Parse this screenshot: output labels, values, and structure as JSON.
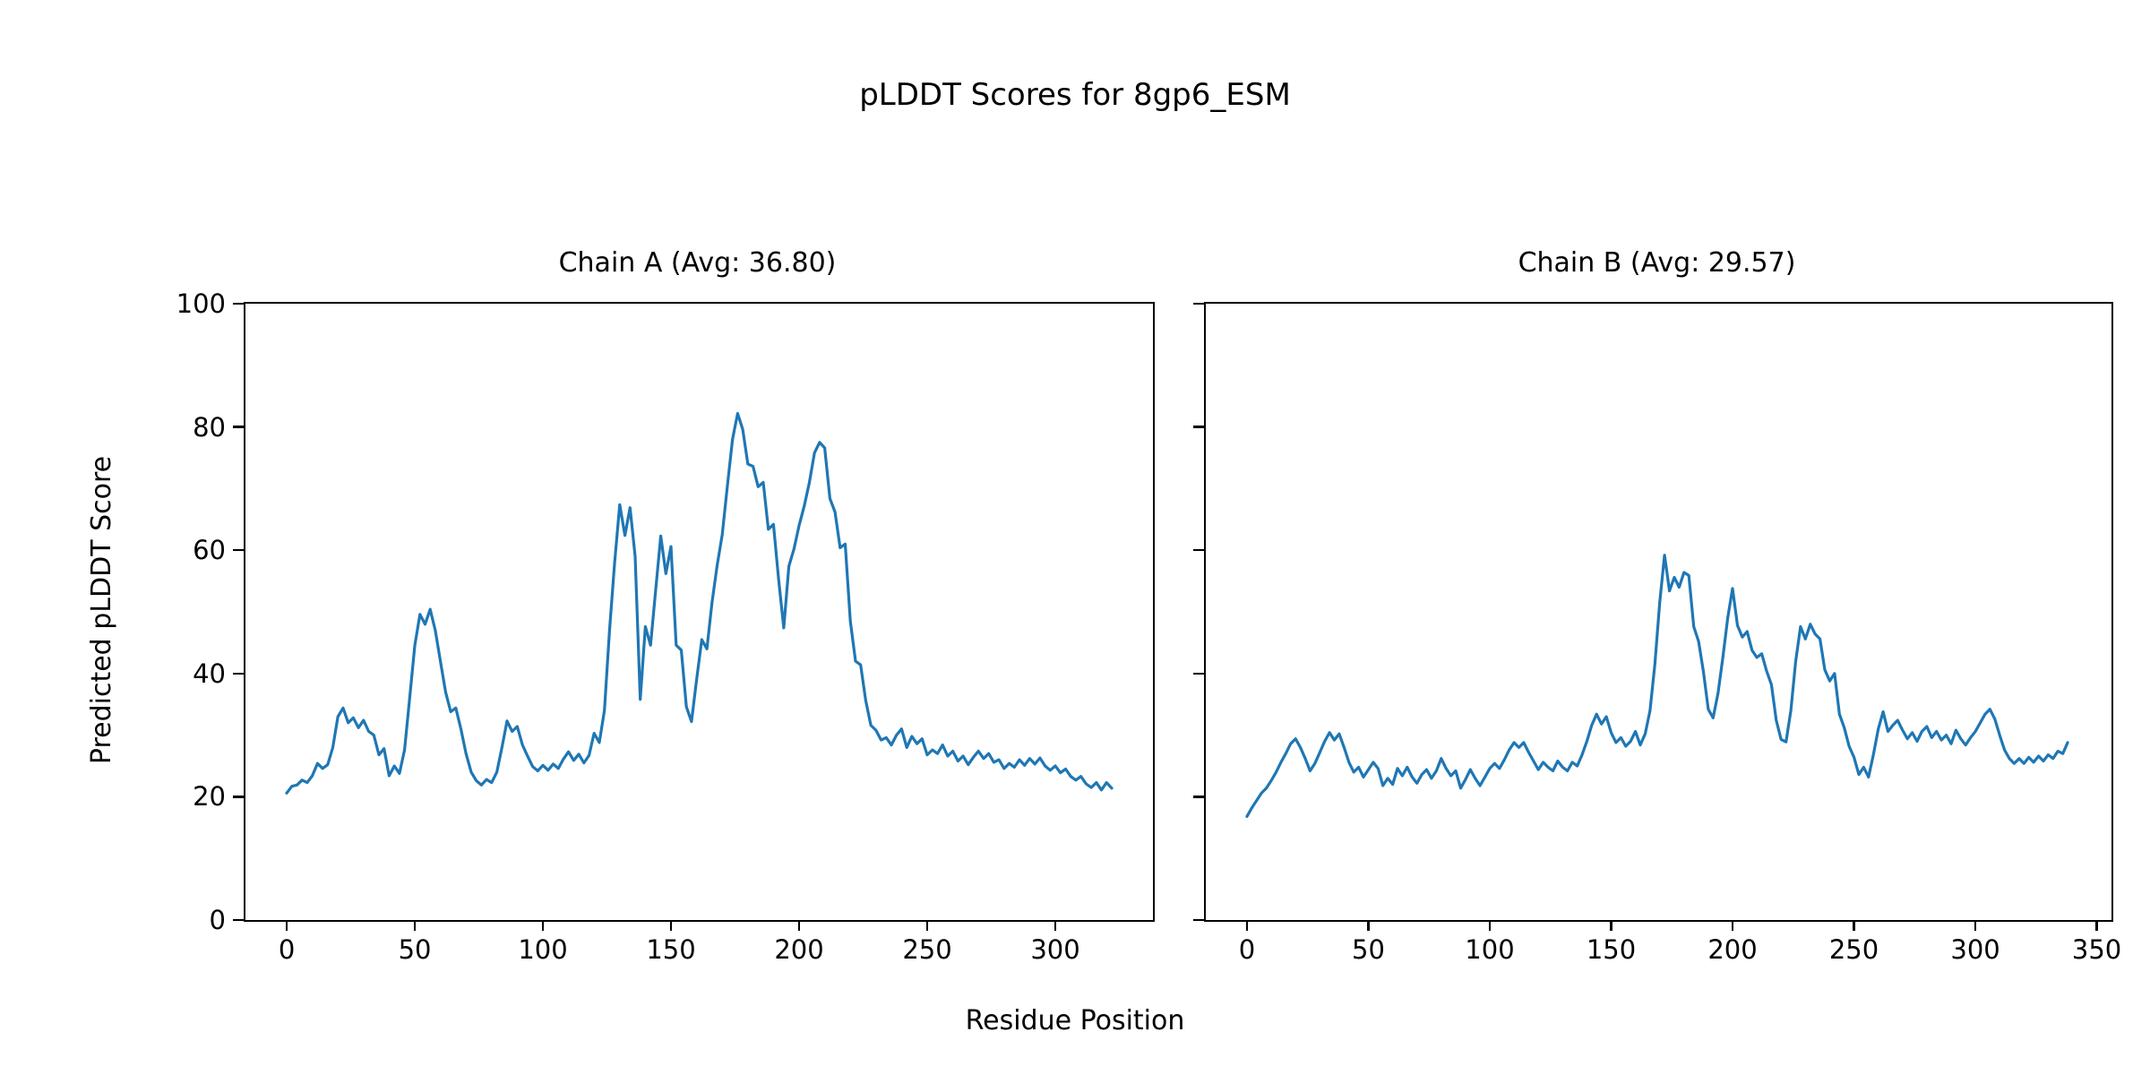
{
  "figure": {
    "suptitle": "pLDDT Scores for 8gp6_ESM",
    "xlabel": "Residue Position",
    "ylabel": "Predicted pLDDT Score",
    "line_color": "#1f77b4",
    "background_color": "#ffffff",
    "spine_color": "#000000",
    "text_color": "#000000"
  },
  "chart_data": [
    {
      "type": "line",
      "title": "Chain A (Avg: 36.80)",
      "chain": "Chain A",
      "avg": 36.8,
      "legend": "none",
      "grid": false,
      "xlabel": "Residue Position",
      "ylabel": "Predicted pLDDT Score",
      "xticks": [
        0,
        50,
        100,
        150,
        200,
        250,
        300
      ],
      "yticks": [
        0,
        20,
        40,
        60,
        80,
        100
      ],
      "show_ytick_labels": true,
      "xlim": [
        -16.1,
        338.1
      ],
      "ylim": [
        0,
        100
      ],
      "x_start": 0,
      "x_step": 2,
      "y": [
        20.6,
        21.7,
        21.9,
        22.7,
        22.3,
        23.4,
        25.4,
        24.6,
        25.2,
        28.0,
        33.0,
        34.4,
        32.0,
        32.8,
        31.2,
        32.4,
        30.6,
        30.0,
        26.8,
        27.8,
        23.4,
        25.0,
        23.8,
        27.6,
        36.0,
        44.5,
        49.6,
        48.0,
        50.4,
        47.0,
        42.0,
        37.0,
        33.8,
        34.4,
        31.0,
        27.0,
        24.0,
        22.6,
        21.9,
        22.8,
        22.3,
        24.0,
        28.0,
        32.3,
        30.6,
        31.4,
        28.4,
        26.6,
        24.9,
        24.2,
        25.1,
        24.3,
        25.3,
        24.6,
        26.1,
        27.3,
        25.9,
        26.9,
        25.5,
        26.7,
        30.3,
        28.8,
        34.0,
        47.0,
        58.0,
        67.4,
        62.4,
        66.9,
        59.0,
        35.8,
        47.6,
        44.6,
        53.5,
        62.3,
        56.2,
        60.6,
        44.6,
        43.8,
        34.6,
        32.2,
        39.0,
        45.5,
        44.0,
        51.5,
        57.5,
        62.5,
        70.5,
        78.0,
        82.2,
        79.6,
        74.0,
        73.6,
        70.3,
        71.0,
        63.4,
        64.2,
        55.2,
        47.4,
        57.4,
        60.2,
        64.0,
        67.2,
        71.0,
        75.8,
        77.5,
        76.6,
        68.4,
        66.2,
        60.4,
        61.0,
        48.5,
        42.0,
        41.4,
        35.6,
        31.6,
        30.8,
        29.2,
        29.6,
        28.4,
        30.0,
        31.0,
        28.0,
        29.8,
        28.6,
        29.4,
        26.8,
        27.6,
        27.0,
        28.4,
        26.6,
        27.4,
        25.8,
        26.6,
        25.2,
        26.4,
        27.4,
        26.2,
        27.0,
        25.6,
        26.0,
        24.6,
        25.4,
        24.8,
        26.0,
        25.1,
        26.2,
        25.3,
        26.3,
        25.0,
        24.3,
        25.0,
        23.9,
        24.5,
        23.3,
        22.7,
        23.3,
        22.1,
        21.5,
        22.3,
        21.1,
        22.3,
        21.4
      ]
    },
    {
      "type": "line",
      "title": "Chain B (Avg: 29.57)",
      "chain": "Chain B",
      "avg": 29.57,
      "legend": "none",
      "grid": false,
      "xlabel": "Residue Position",
      "ylabel": "Predicted pLDDT Score",
      "xticks": [
        0,
        50,
        100,
        150,
        200,
        250,
        300,
        350
      ],
      "yticks": [
        0,
        20,
        40,
        60,
        80,
        100
      ],
      "show_ytick_labels": false,
      "xlim": [
        -16.95,
        356.05
      ],
      "ylim": [
        0,
        100
      ],
      "x_start": 0,
      "x_step": 2,
      "y": [
        16.8,
        18.2,
        19.4,
        20.6,
        21.4,
        22.6,
        24.0,
        25.6,
        27.0,
        28.6,
        29.4,
        28.0,
        26.2,
        24.2,
        25.4,
        27.2,
        29.0,
        30.4,
        29.2,
        30.2,
        28.0,
        25.6,
        24.0,
        24.8,
        23.2,
        24.4,
        25.6,
        24.6,
        21.8,
        23.0,
        22.0,
        24.6,
        23.4,
        24.8,
        23.2,
        22.2,
        23.6,
        24.4,
        23.0,
        24.2,
        26.2,
        24.6,
        23.4,
        24.2,
        21.4,
        22.8,
        24.4,
        23.0,
        21.8,
        23.2,
        24.6,
        25.4,
        24.6,
        26.0,
        27.6,
        28.8,
        28.0,
        28.8,
        27.2,
        25.8,
        24.4,
        25.6,
        24.8,
        24.2,
        25.8,
        24.8,
        24.2,
        25.6,
        25.0,
        26.8,
        29.0,
        31.6,
        33.4,
        31.8,
        33.0,
        30.4,
        28.8,
        29.6,
        28.2,
        29.0,
        30.6,
        28.4,
        30.2,
        34.0,
        41.5,
        51.5,
        59.2,
        53.4,
        55.6,
        54.0,
        56.4,
        55.9,
        47.6,
        45.2,
        40.3,
        34.2,
        32.8,
        36.8,
        42.6,
        49.0,
        53.8,
        47.8,
        45.9,
        46.8,
        43.8,
        42.6,
        43.2,
        40.4,
        38.2,
        32.4,
        29.3,
        28.9,
        34.0,
        42.0,
        47.6,
        45.6,
        48.0,
        46.4,
        45.6,
        40.6,
        38.8,
        40.0,
        33.4,
        31.2,
        28.2,
        26.4,
        23.6,
        24.8,
        23.2,
        26.8,
        31.0,
        33.8,
        30.6,
        31.6,
        32.4,
        30.8,
        29.4,
        30.4,
        29.0,
        30.6,
        31.4,
        29.6,
        30.6,
        29.2,
        30.0,
        28.6,
        30.8,
        29.4,
        28.4,
        29.6,
        30.6,
        32.0,
        33.4,
        34.2,
        32.6,
        30.0,
        27.6,
        26.2,
        25.4,
        26.2,
        25.4,
        26.4,
        25.6,
        26.6,
        25.8,
        26.8,
        26.2,
        27.4,
        27.0,
        28.8
      ]
    }
  ]
}
